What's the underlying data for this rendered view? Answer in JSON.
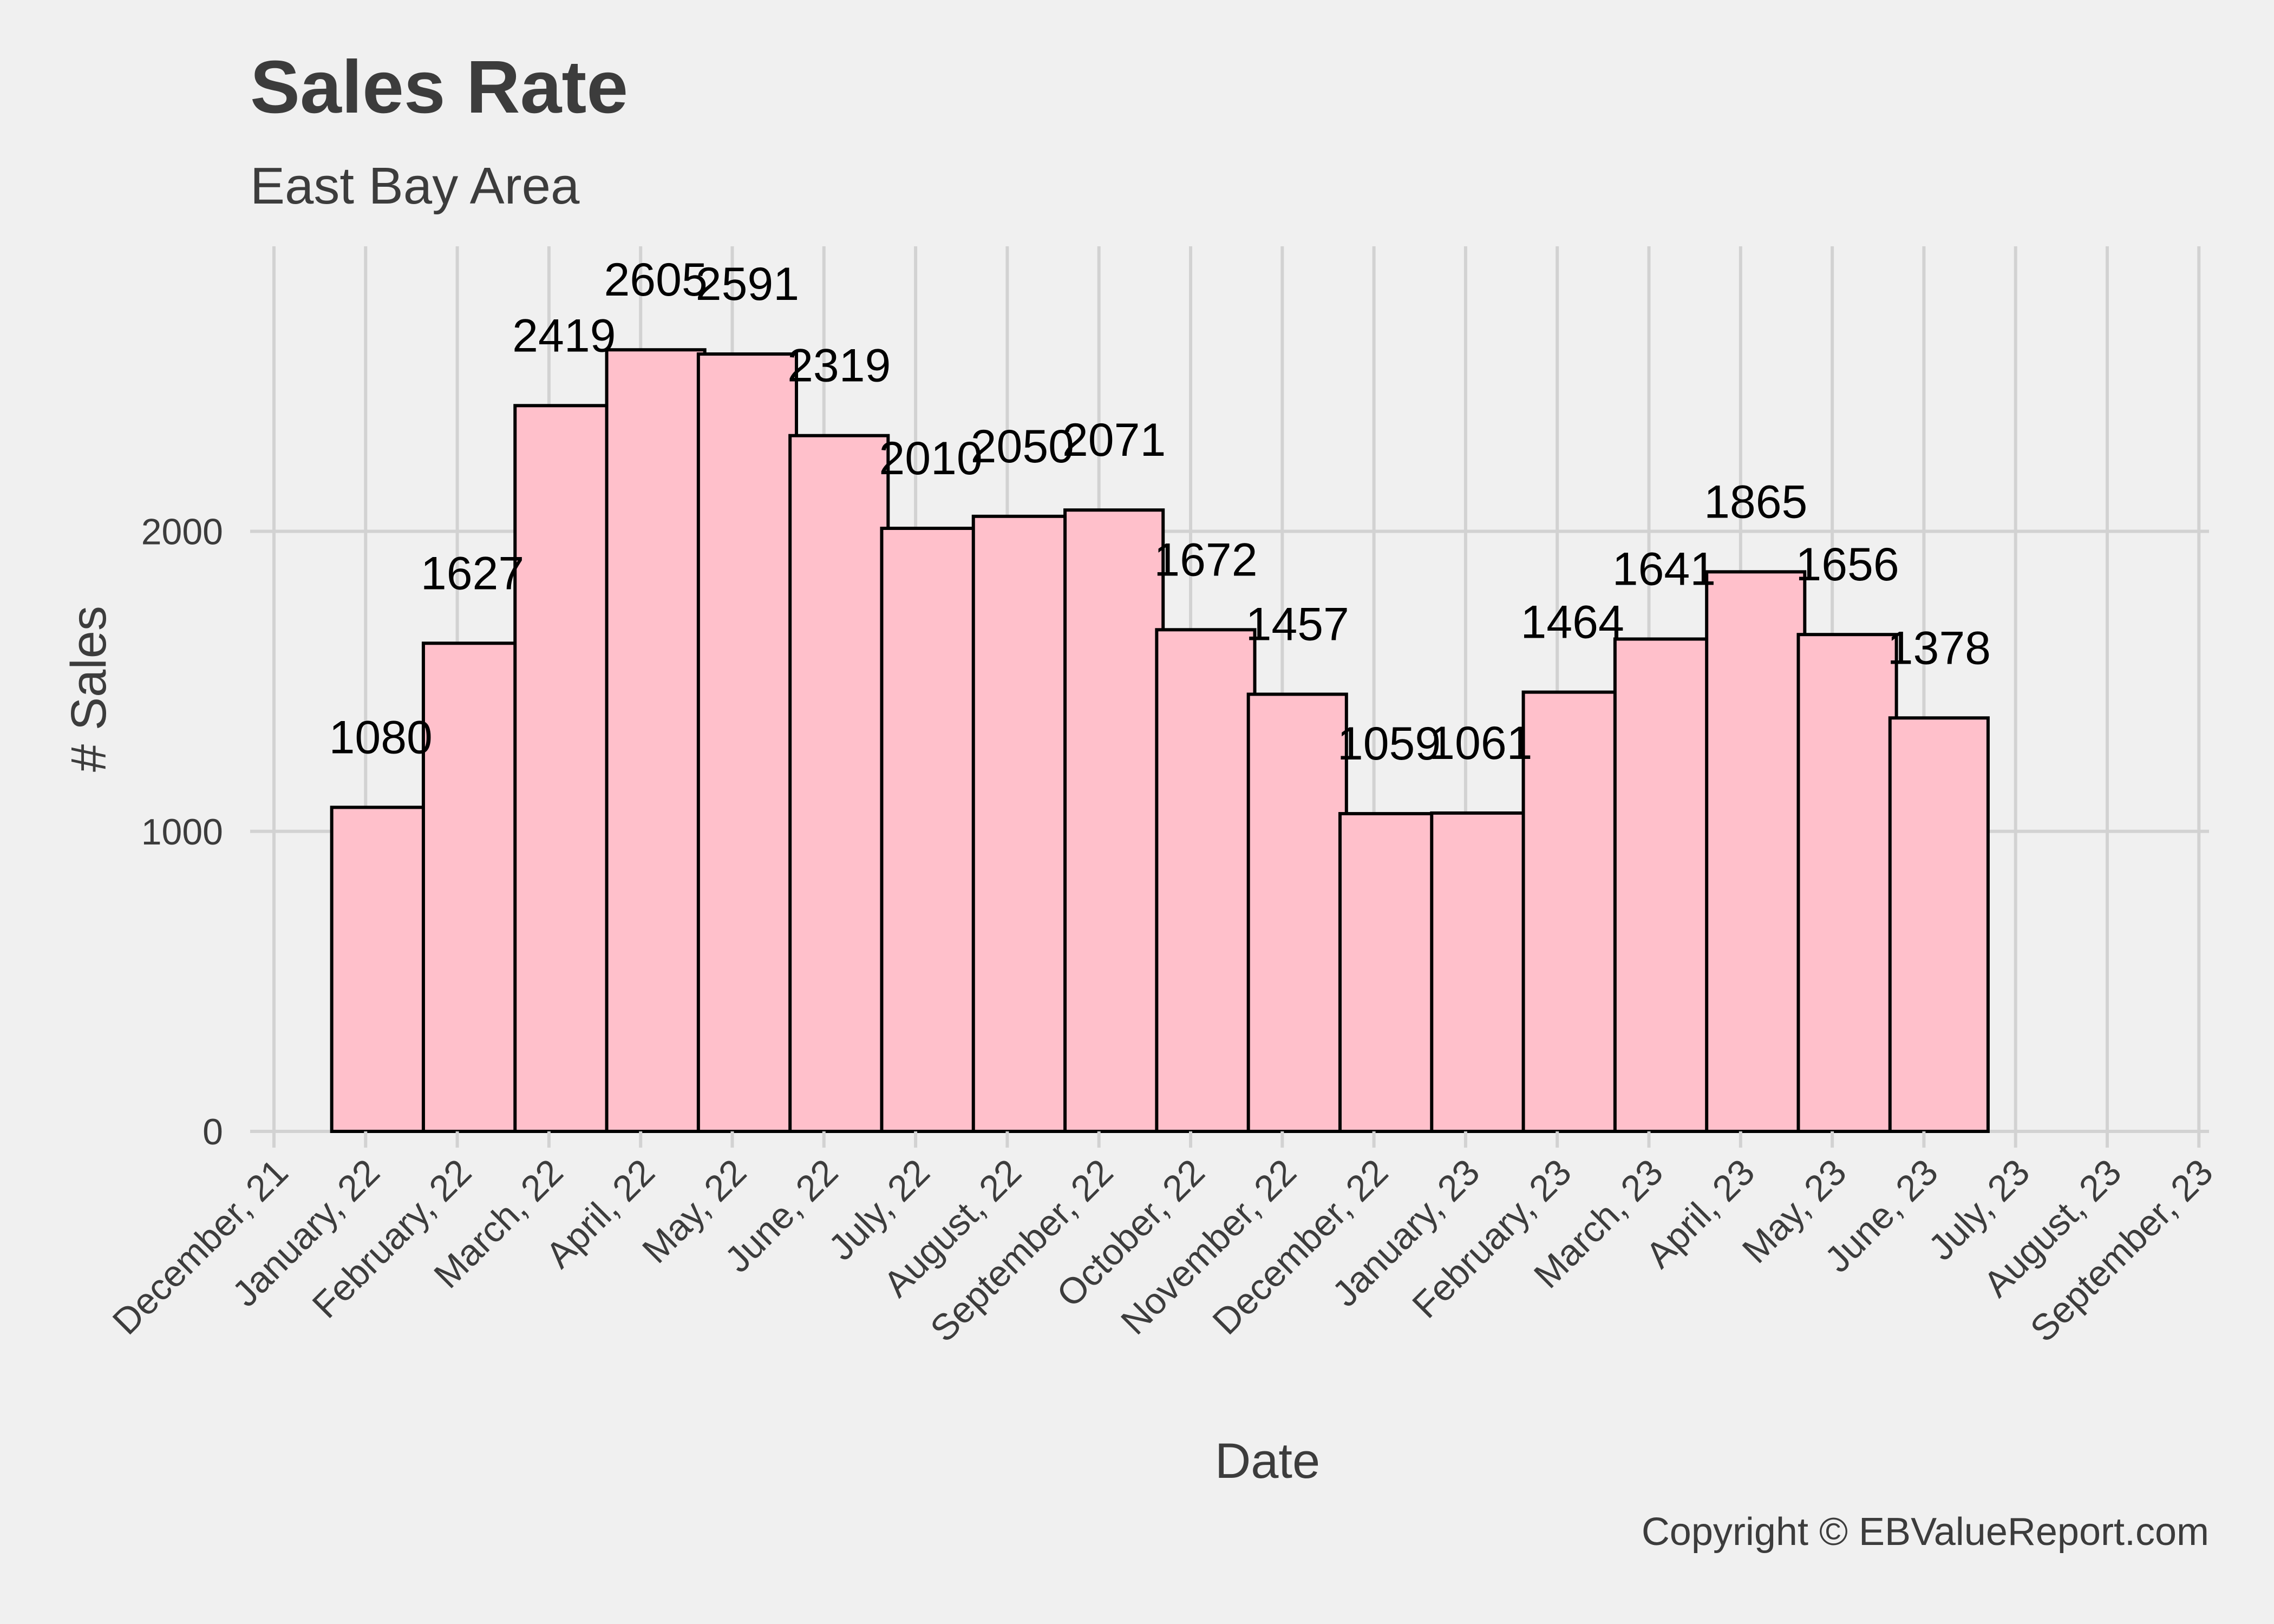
{
  "chart_data": {
    "type": "bar",
    "title": "Sales Rate",
    "subtitle": "East Bay Area",
    "caption": "Copyright  © EBValueReport.com",
    "xlabel": "Date",
    "ylabel": "# Sales",
    "ylim": [
      0,
      2950
    ],
    "yticks": [
      0,
      1000,
      2000
    ],
    "grid": true,
    "x_ticks": [
      "December, 21",
      "January, 22",
      "February, 22",
      "March, 22",
      "April, 22",
      "May, 22",
      "June, 22",
      "July, 22",
      "August, 22",
      "September, 22",
      "October, 22",
      "November, 22",
      "December, 22",
      "January, 23",
      "February, 23",
      "March, 23",
      "April, 23",
      "May, 23",
      "June, 23",
      "July, 23",
      "August, 23",
      "September, 23"
    ],
    "bars": [
      {
        "month": "2022-01",
        "value": 1080
      },
      {
        "month": "2022-02",
        "value": 1627
      },
      {
        "month": "2022-03",
        "value": 2419
      },
      {
        "month": "2022-04",
        "value": 2605
      },
      {
        "month": "2022-05",
        "value": 2591
      },
      {
        "month": "2022-06",
        "value": 2319
      },
      {
        "month": "2022-07",
        "value": 2010
      },
      {
        "month": "2022-08",
        "value": 2050
      },
      {
        "month": "2022-09",
        "value": 2071
      },
      {
        "month": "2022-10",
        "value": 1672
      },
      {
        "month": "2022-11",
        "value": 1457
      },
      {
        "month": "2022-12",
        "value": 1059
      },
      {
        "month": "2023-01",
        "value": 1061
      },
      {
        "month": "2023-02",
        "value": 1464
      },
      {
        "month": "2023-03",
        "value": 1641
      },
      {
        "month": "2023-04",
        "value": 1865
      },
      {
        "month": "2023-05",
        "value": 1656
      },
      {
        "month": "2023-06",
        "value": 1378
      }
    ],
    "colors": {
      "background": "#f0f0f0",
      "bar_fill": "#ffc0cb",
      "bar_stroke": "#000000",
      "grid": "#d2d2d2",
      "text": "#3c3c3c"
    }
  }
}
